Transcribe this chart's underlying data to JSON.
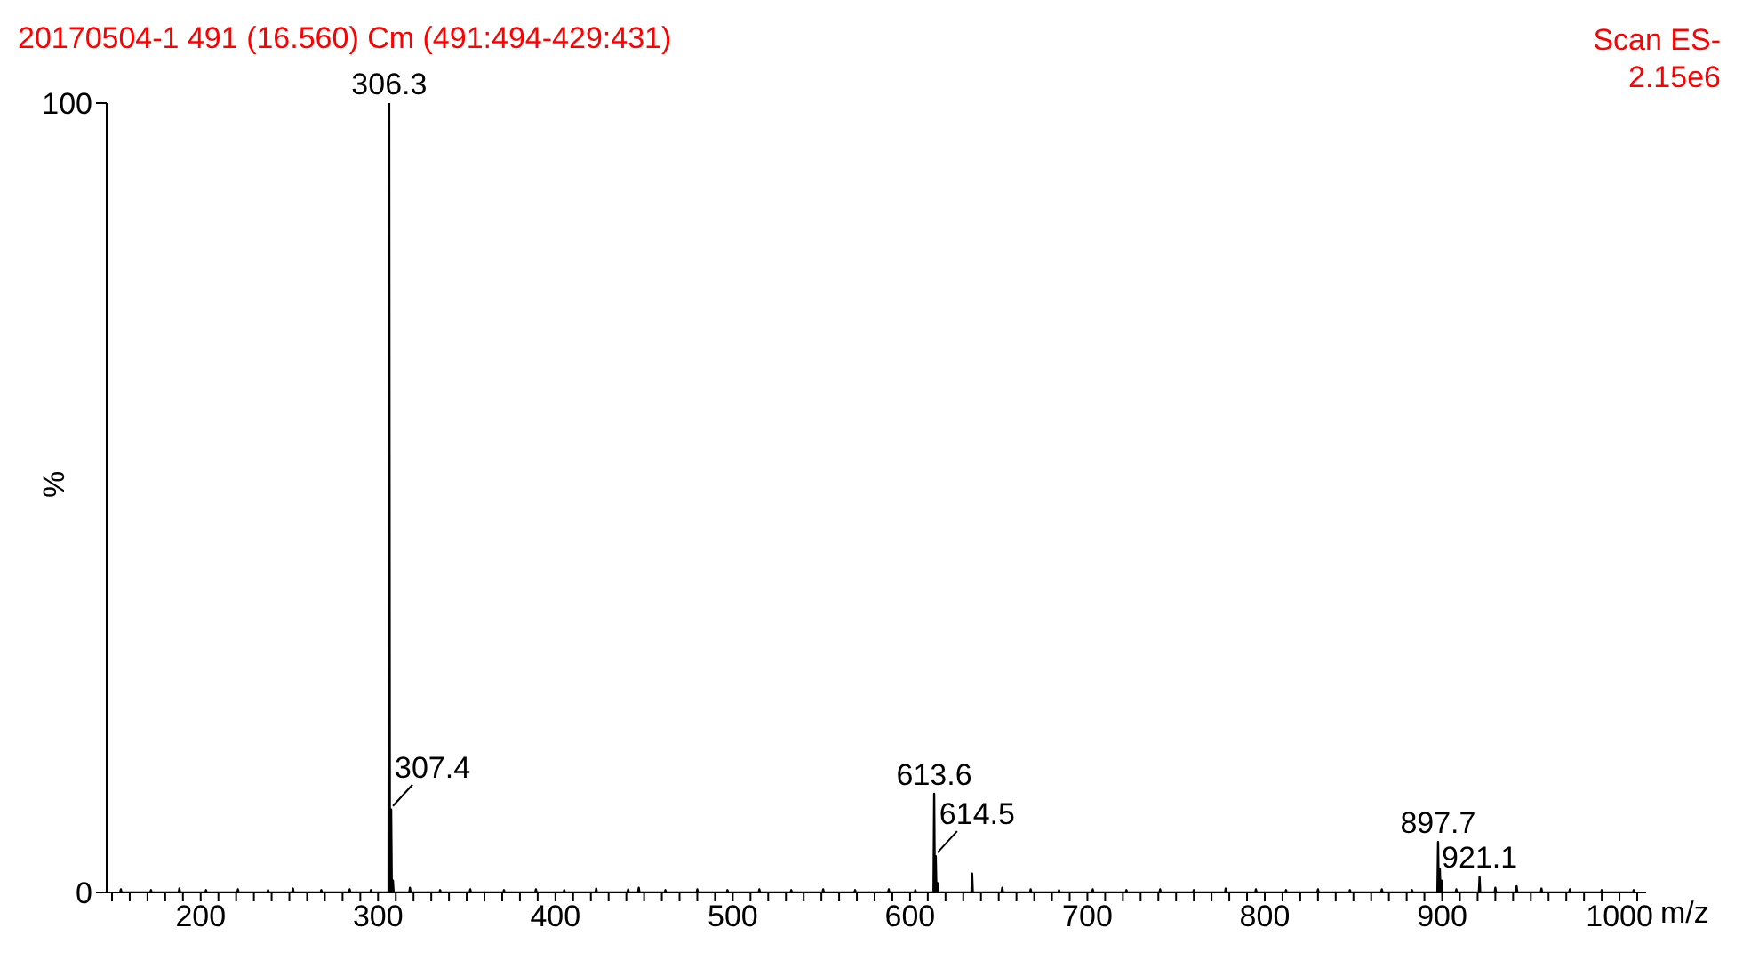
{
  "chart_data": {
    "type": "line",
    "title": "20170504-1 491 (16.560) Cm (491:494-429:431)",
    "xlabel": "m/z",
    "ylabel": "%",
    "annotations": [
      "Scan ES-",
      "2.15e6",
      {
        "text": "306.3",
        "x": 306.3,
        "y": 100
      },
      {
        "text": "307.4",
        "x": 307.4,
        "y": 10.5
      },
      {
        "text": "613.6",
        "x": 613.6,
        "y": 12.5
      },
      {
        "text": "614.5",
        "x": 614.5,
        "y": 4.6
      },
      {
        "text": "897.7",
        "x": 897.7,
        "y": 6.4
      },
      {
        "text": "921.1",
        "x": 921.1,
        "y": 2
      }
    ],
    "series": [
      {
        "color": "#000000",
        "x": [
          154.6,
          155,
          155.4,
          171.6,
          172,
          172.4,
          187.6,
          188,
          188.4,
          202.6,
          203,
          203.4,
          220.6,
          221,
          221.4,
          237.6,
          238,
          238.4,
          251.6,
          252,
          252.4,
          267.6,
          268,
          268.4,
          283.6,
          284,
          284.4,
          295.6,
          296,
          296.4,
          305.9,
          306.3,
          306.7,
          307.0,
          307.4,
          307.8,
          308.0,
          308.4,
          308.8,
          317.6,
          318,
          318.4,
          334.6,
          335,
          335.4,
          351.6,
          352,
          352.4,
          370.6,
          371,
          371.4,
          388.6,
          389,
          389.4,
          404.6,
          405,
          405.4,
          422.6,
          423,
          423.4,
          440.6,
          441,
          441.4,
          446.6,
          447,
          447.4,
          461.6,
          462,
          462.4,
          479.6,
          480,
          480.4,
          496.6,
          497,
          497.4,
          514.6,
          515,
          515.4,
          532.6,
          533,
          533.4,
          550.6,
          551,
          551.4,
          568.6,
          569,
          569.4,
          587.6,
          588,
          588.4,
          602.6,
          603,
          603.4,
          613.2,
          613.6,
          614.0,
          614.1,
          614.5,
          614.9,
          615.1,
          615.5,
          615.9,
          634.6,
          635,
          635.4,
          651.6,
          652,
          652.4,
          667.6,
          668,
          668.4,
          683.6,
          684,
          684.4,
          702.6,
          703,
          703.4,
          721.6,
          722,
          722.4,
          740.6,
          741,
          741.4,
          759.6,
          760,
          760.4,
          777.6,
          778,
          778.4,
          794.6,
          795,
          795.4,
          811.6,
          812,
          812.4,
          829.6,
          830,
          830.4,
          847.6,
          848,
          848.4,
          865.6,
          866,
          866.4,
          882.6,
          883,
          883.4,
          897.3,
          897.7,
          898.1,
          898.3,
          898.7,
          899.1,
          899.3,
          899.7,
          900.1,
          907.6,
          908,
          908.4,
          920.7,
          921.1,
          921.5,
          929.6,
          930,
          930.4,
          941.6,
          942,
          942.4,
          955.6,
          956,
          956.4,
          971.6,
          972,
          972.4,
          989.6,
          990,
          990.4,
          1007.6,
          1008,
          1008.4
        ],
        "values": [
          0,
          0.4,
          0,
          0,
          0.3,
          0,
          0,
          0.5,
          0,
          0,
          0.3,
          0,
          0,
          0.4,
          0,
          0,
          0.3,
          0,
          0,
          0.5,
          0,
          0,
          0.3,
          0,
          0,
          0.4,
          0,
          0,
          0.3,
          0,
          0,
          100,
          0,
          0,
          10.5,
          0,
          0,
          1.5,
          0,
          0,
          0.6,
          0,
          0,
          0.3,
          0,
          0,
          0.4,
          0,
          0,
          0.3,
          0,
          0,
          0.4,
          0,
          0,
          0.3,
          0,
          0,
          0.5,
          0,
          0,
          0.4,
          0,
          0,
          0.6,
          0,
          0,
          0.3,
          0,
          0,
          0.4,
          0,
          0,
          0.3,
          0,
          0,
          0.4,
          0,
          0,
          0.3,
          0,
          0,
          0.4,
          0,
          0,
          0.3,
          0,
          0,
          0.4,
          0,
          0,
          0.3,
          0,
          0,
          12.5,
          0,
          0,
          4.6,
          0,
          0,
          1.2,
          0,
          0,
          2.4,
          0,
          0,
          0.6,
          0,
          0,
          0.4,
          0,
          0,
          0.3,
          0,
          0,
          0.4,
          0,
          0,
          0.3,
          0,
          0,
          0.4,
          0,
          0,
          0.3,
          0,
          0,
          0.5,
          0,
          0,
          0.4,
          0,
          0,
          0.3,
          0,
          0,
          0.4,
          0,
          0,
          0.3,
          0,
          0,
          0.4,
          0,
          0,
          0.3,
          0,
          0,
          6.4,
          0,
          0,
          3,
          0,
          0,
          1.5,
          0,
          0,
          0.4,
          0,
          0,
          2,
          0,
          0,
          0.6,
          0,
          0,
          0.8,
          0,
          0,
          0.5,
          0,
          0,
          0.4,
          0,
          0,
          0.3,
          0,
          0,
          0.3,
          0
        ]
      }
    ],
    "xlim": [
      147,
      1015
    ],
    "xticks": [
      {
        "value": 150,
        "label": null
      },
      {
        "value": 160,
        "label": null
      },
      {
        "value": 170,
        "label": null
      },
      {
        "value": 180,
        "label": null
      },
      {
        "value": 190,
        "label": null
      },
      200,
      {
        "value": 210,
        "label": null
      },
      {
        "value": 220,
        "label": null
      },
      {
        "value": 230,
        "label": null
      },
      {
        "value": 240,
        "label": null
      },
      {
        "value": 250,
        "label": null
      },
      {
        "value": 260,
        "label": null
      },
      {
        "value": 270,
        "label": null
      },
      {
        "value": 280,
        "label": null
      },
      {
        "value": 290,
        "label": null
      },
      300,
      {
        "value": 310,
        "label": null
      },
      {
        "value": 320,
        "label": null
      },
      {
        "value": 330,
        "label": null
      },
      {
        "value": 340,
        "label": null
      },
      {
        "value": 350,
        "label": null
      },
      {
        "value": 360,
        "label": null
      },
      {
        "value": 370,
        "label": null
      },
      {
        "value": 380,
        "label": null
      },
      {
        "value": 390,
        "label": null
      },
      400,
      {
        "value": 410,
        "label": null
      },
      {
        "value": 420,
        "label": null
      },
      {
        "value": 430,
        "label": null
      },
      {
        "value": 440,
        "label": null
      },
      {
        "value": 450,
        "label": null
      },
      {
        "value": 460,
        "label": null
      },
      {
        "value": 470,
        "label": null
      },
      {
        "value": 480,
        "label": null
      },
      {
        "value": 490,
        "label": null
      },
      500,
      {
        "value": 510,
        "label": null
      },
      {
        "value": 520,
        "label": null
      },
      {
        "value": 530,
        "label": null
      },
      {
        "value": 540,
        "label": null
      },
      {
        "value": 550,
        "label": null
      },
      {
        "value": 560,
        "label": null
      },
      {
        "value": 570,
        "label": null
      },
      {
        "value": 580,
        "label": null
      },
      {
        "value": 590,
        "label": null
      },
      600,
      {
        "value": 610,
        "label": null
      },
      {
        "value": 620,
        "label": null
      },
      {
        "value": 630,
        "label": null
      },
      {
        "value": 640,
        "label": null
      },
      {
        "value": 650,
        "label": null
      },
      {
        "value": 660,
        "label": null
      },
      {
        "value": 670,
        "label": null
      },
      {
        "value": 680,
        "label": null
      },
      {
        "value": 690,
        "label": null
      },
      700,
      {
        "value": 710,
        "label": null
      },
      {
        "value": 720,
        "label": null
      },
      {
        "value": 730,
        "label": null
      },
      {
        "value": 740,
        "label": null
      },
      {
        "value": 750,
        "label": null
      },
      {
        "value": 760,
        "label": null
      },
      {
        "value": 770,
        "label": null
      },
      {
        "value": 780,
        "label": null
      },
      {
        "value": 790,
        "label": null
      },
      800,
      {
        "value": 810,
        "label": null
      },
      {
        "value": 820,
        "label": null
      },
      {
        "value": 830,
        "label": null
      },
      {
        "value": 840,
        "label": null
      },
      {
        "value": 850,
        "label": null
      },
      {
        "value": 860,
        "label": null
      },
      {
        "value": 870,
        "label": null
      },
      {
        "value": 880,
        "label": null
      },
      {
        "value": 890,
        "label": null
      },
      900,
      {
        "value": 910,
        "label": null
      },
      {
        "value": 920,
        "label": null
      },
      {
        "value": 930,
        "label": null
      },
      {
        "value": 940,
        "label": null
      },
      {
        "value": 950,
        "label": null
      },
      {
        "value": 960,
        "label": null
      },
      {
        "value": 970,
        "label": null
      },
      {
        "value": 980,
        "label": null
      },
      {
        "value": 990,
        "label": null
      },
      1000,
      {
        "value": 1010,
        "label": null
      }
    ],
    "ylim": [
      0,
      100
    ],
    "yticks": [
      0,
      100
    ],
    "grid": false,
    "legend": false,
    "marker": "none",
    "line_style": "solid"
  }
}
